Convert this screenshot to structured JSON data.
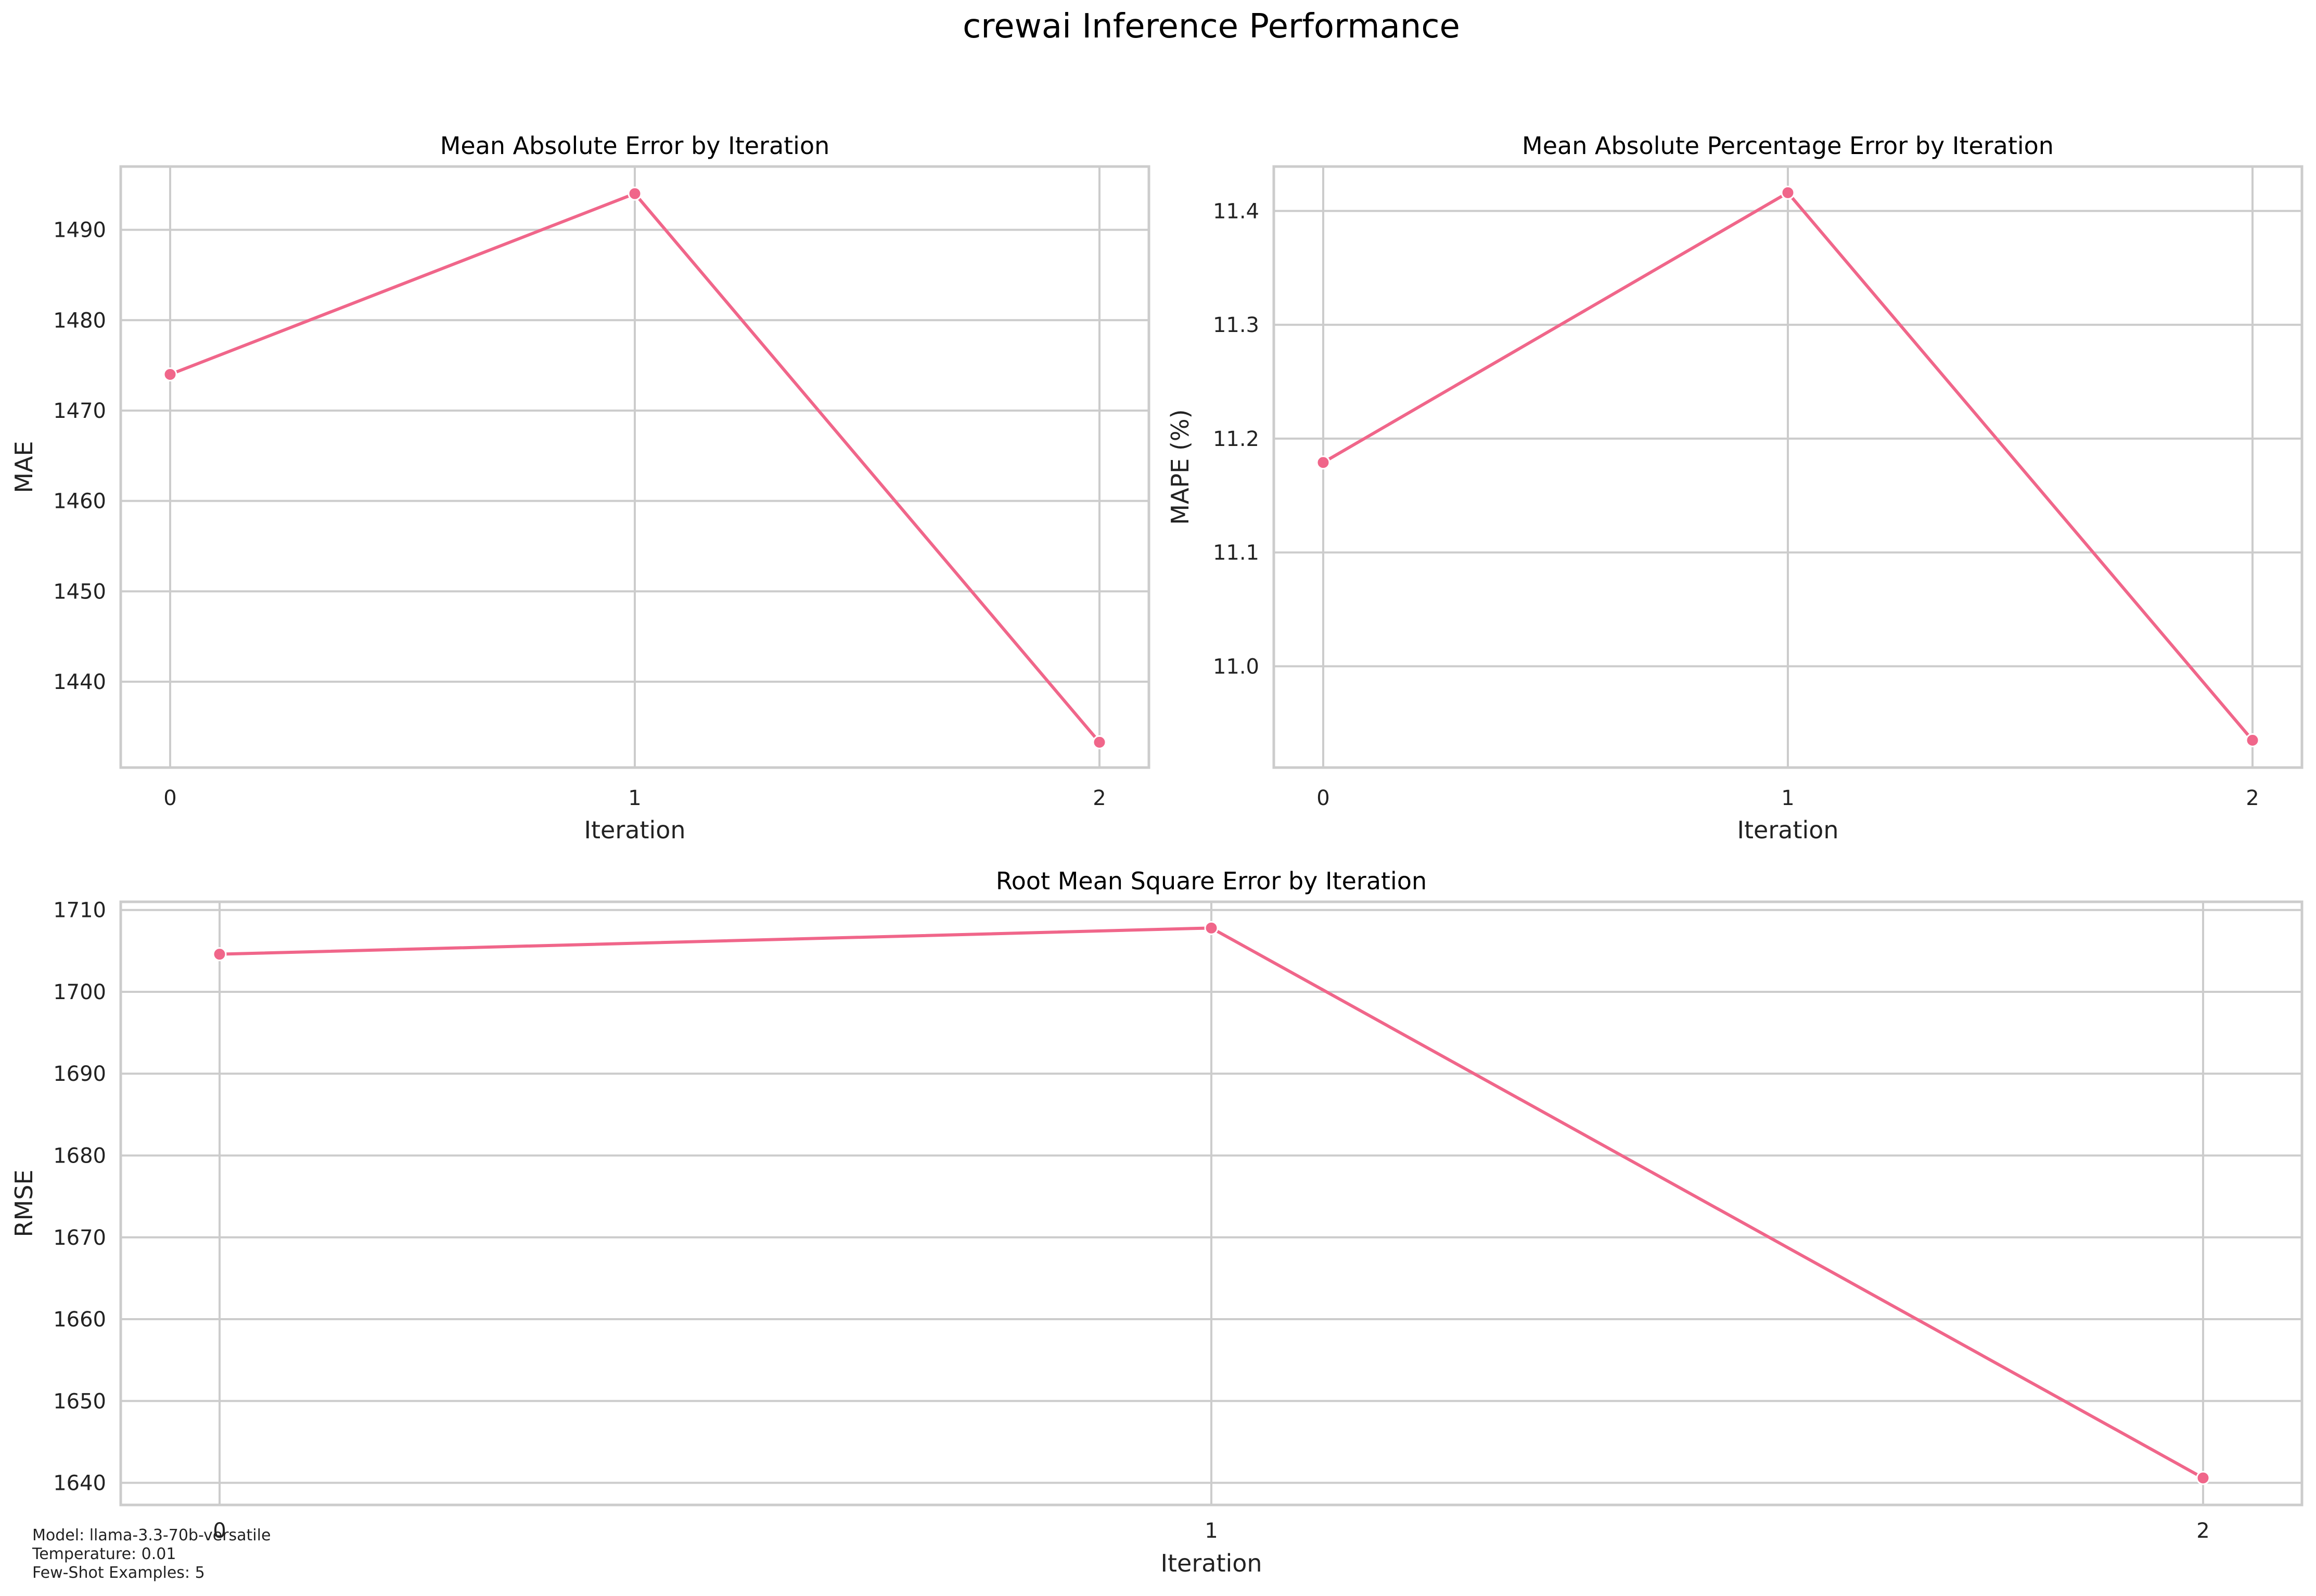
{
  "figure": {
    "title": "crewai Inference Performance",
    "line_color": "#f0668a",
    "grid_color": "#cccccc",
    "notes": [
      "Model: llama-3.3-70b-versatile",
      "Temperature: 0.01",
      "Few-Shot Examples: 5"
    ]
  },
  "chart_data": [
    {
      "type": "line",
      "title": "Mean Absolute Error by Iteration",
      "xlabel": "Iteration",
      "ylabel": "MAE",
      "x": [
        0,
        1,
        2
      ],
      "x_ticks": [
        "0",
        "1",
        "2"
      ],
      "y_ticks": [
        1440,
        1450,
        1460,
        1470,
        1480,
        1490
      ],
      "ylim": [
        1430.5,
        1497
      ],
      "series": [
        {
          "values": [
            1474,
            1494,
            1433.3
          ]
        }
      ],
      "grid": true
    },
    {
      "type": "line",
      "title": "Mean Absolute Percentage Error by Iteration",
      "xlabel": "Iteration",
      "ylabel": "MAPE (%)",
      "x": [
        0,
        1,
        2
      ],
      "x_ticks": [
        "0",
        "1",
        "2"
      ],
      "y_ticks": [
        "11.0",
        "11.1",
        "11.2",
        "11.3",
        "11.4"
      ],
      "ylim": [
        10.911,
        11.439
      ],
      "series": [
        {
          "values": [
            11.179,
            11.416,
            10.935
          ]
        }
      ],
      "grid": true
    },
    {
      "type": "line",
      "title": "Root Mean Square Error by Iteration",
      "xlabel": "Iteration",
      "ylabel": "RMSE",
      "x": [
        0,
        1,
        2
      ],
      "x_ticks": [
        "0",
        "1",
        "2"
      ],
      "y_ticks": [
        1640,
        1650,
        1660,
        1670,
        1680,
        1690,
        1700,
        1710
      ],
      "ylim": [
        1637.3,
        1711
      ],
      "series": [
        {
          "values": [
            1704.6,
            1707.8,
            1640.6
          ]
        }
      ],
      "grid": true
    }
  ]
}
